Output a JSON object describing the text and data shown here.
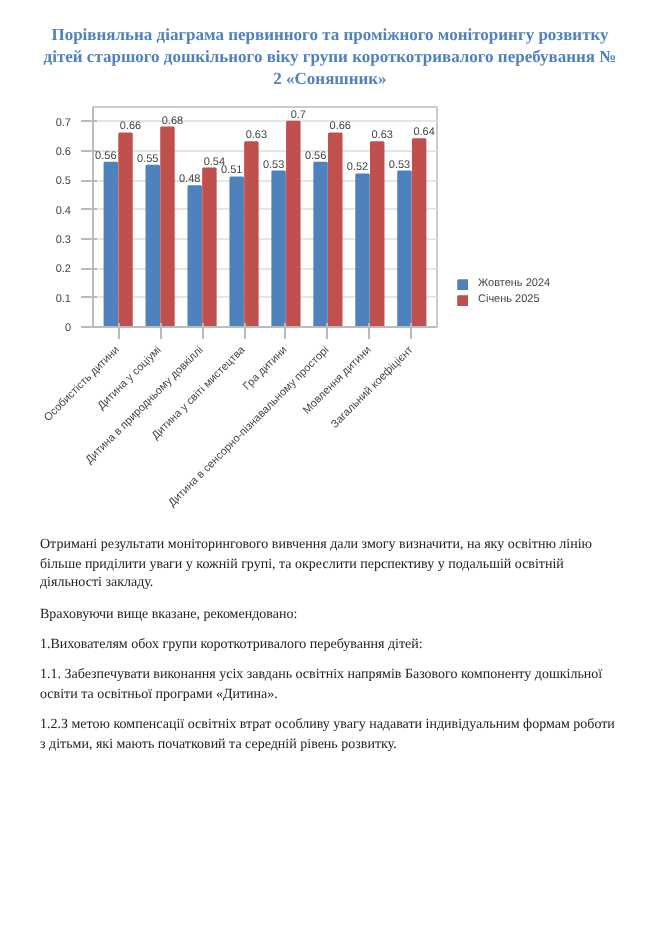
{
  "chart_data": {
    "type": "bar",
    "title": "Порівняльна діаграма первинного та проміжного моніторингу розвитку дітей старшого дошкільного віку групи короткотривалого перебування № 2 «Соняшник»",
    "categories": [
      "Особистість дитини",
      "Дитина у соціумі",
      "Дитина в природньому довкіллі",
      "Дитина у світі мистецтва",
      "Гра дитини",
      "Дитина в сенсорно-пізнавальному просторі",
      "Мовлення дитини",
      "Загальний коефіцієнт"
    ],
    "series": [
      {
        "name": "Жовтень 2024",
        "color": "#4f81bd",
        "values": [
          0.56,
          0.55,
          0.48,
          0.51,
          0.53,
          0.56,
          0.52,
          0.53
        ]
      },
      {
        "name": "Січень 2025",
        "color": "#c0504d",
        "values": [
          0.66,
          0.68,
          0.54,
          0.63,
          0.7,
          0.66,
          0.63,
          0.64
        ]
      }
    ],
    "ylim": [
      0,
      0.75
    ],
    "yticks": [
      0,
      0.1,
      0.2,
      0.3,
      0.4,
      0.5,
      0.6,
      0.7
    ],
    "grid": "y",
    "legend": "right",
    "data_labels": true,
    "annotations": [
      "Отримані результати моніторингового вивчення дали змогу визначити, на яку освітню лінію більше приділити уваги у кожній групі, та окреслити перспективу у подальшій освітній діяльності закладу.",
      "Враховуючи вище вказане, рекомендовано:",
      "1.Вихователям обох  групи короткотривалого перебування дітей:",
      "1.1. Забезпечувати виконання усіх завдань освітніх напрямів Базового компоненту дошкільної освіти та освітньої програми «Дитина».",
      "1.2.З метою компенсації освітніх втрат особливу увагу надавати індивідуальним формам роботи з дітьми, які мають початковий та середній рівень розвитку."
    ]
  }
}
